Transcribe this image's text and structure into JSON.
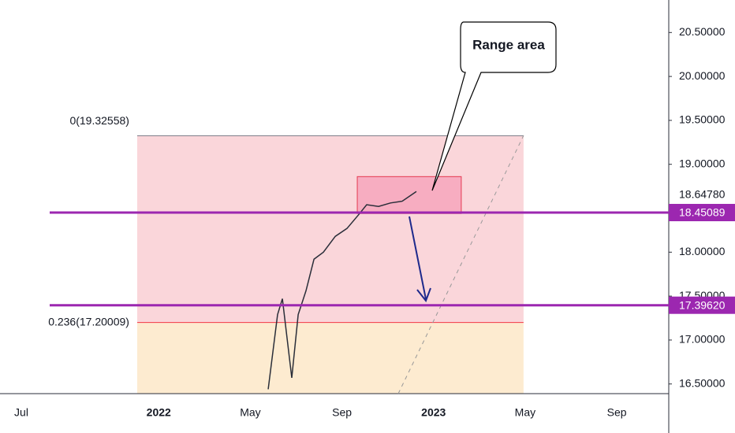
{
  "chart_data": {
    "type": "line",
    "series": [
      {
        "name": "price",
        "color": "#2a2e39",
        "x": [
          10.78,
          11.19,
          11.4,
          11.81,
          12.09,
          12.43,
          12.78,
          13.19,
          13.71,
          14.22,
          14.74,
          15.08,
          15.6,
          16.12,
          16.63,
          17.25
        ],
        "values": [
          16.44,
          17.29,
          17.47,
          16.57,
          17.29,
          17.56,
          17.92,
          18.0,
          18.18,
          18.27,
          18.43,
          18.54,
          18.52,
          18.56,
          18.58,
          18.69
        ]
      }
    ],
    "xlim": [
      -0.93,
      28.27
    ],
    "xticks": [
      {
        "value": 0,
        "label": "Jul"
      },
      {
        "value": 6,
        "label": "2022"
      },
      {
        "value": 10,
        "label": "May"
      },
      {
        "value": 14,
        "label": "Sep"
      },
      {
        "value": 18,
        "label": "2023"
      },
      {
        "value": 22,
        "label": "May"
      },
      {
        "value": 26,
        "label": "Sep"
      }
    ],
    "ylim": [
      16.39,
      20.87
    ],
    "yticks": [
      {
        "value": 20.5,
        "label": "20.50000"
      },
      {
        "value": 20,
        "label": "20.00000"
      },
      {
        "value": 19.5,
        "label": "19.50000"
      },
      {
        "value": 19,
        "label": "19.00000"
      },
      {
        "value": 18,
        "label": "18.00000"
      },
      {
        "value": 17.5,
        "label": "17.50000"
      },
      {
        "value": 17,
        "label": "17.00000"
      },
      {
        "value": 16.5,
        "label": "16.50000"
      }
    ],
    "last_price": {
      "value": 18.6478,
      "label": "18.64780"
    },
    "hlines": [
      {
        "value": 18.45089,
        "color": "#9c27b0"
      },
      {
        "value": {
          "value": 17.3962,
          "label": "17.39620"
        },
        "color": "#9c27b0"
      }
    ],
    "fib": {
      "x": [
        5.06,
        21.93
      ],
      "levels": [
        {
          "value": 19.32558,
          "label": "0(19.32558)",
          "color": "#787b86",
          "text_color": "#787b86"
        },
        {
          "value": 17.20009,
          "label": "0.236(17.20009)",
          "color": "#f23645",
          "text_color": "#f23645"
        }
      ],
      "fills": [
        "#fad6da",
        "#fdebd0"
      ]
    },
    "range_box": {
      "x": [
        14.67,
        19.21
      ],
      "y": [
        18.44,
        18.86
      ],
      "color": "#f06292"
    },
    "annotation": "Range area"
  }
}
